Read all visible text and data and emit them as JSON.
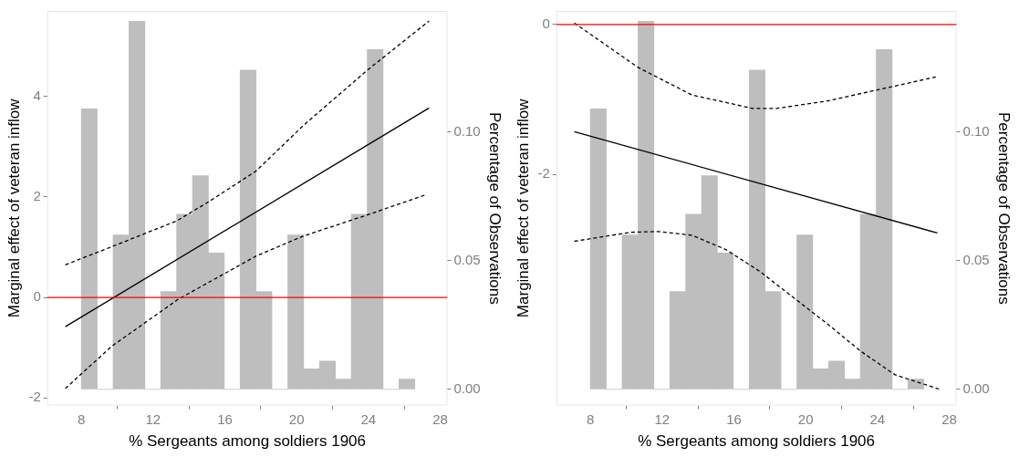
{
  "chart_data": [
    {
      "type": "line",
      "xlabel": "% Sergeants among soldiers 1906",
      "ylabel": "Marginal effect of veteran inflow",
      "y2label": "Percentage of Observations",
      "xlim": [
        6.1,
        28.4
      ],
      "xticks": [
        8,
        12,
        16,
        20,
        24,
        28
      ],
      "ylim": [
        -2.15,
        5.7
      ],
      "yticks": [
        -2,
        0,
        2,
        4
      ],
      "y2lim": [
        -0.0063,
        0.147
      ],
      "y2ticks": [
        {
          "value": 0,
          "label": "0.00"
        },
        {
          "value": 0.05,
          "label": "0.05"
        },
        {
          "value": 0.1,
          "label": "0.10"
        }
      ],
      "grid": false,
      "legend": false,
      "ref_lines": [
        {
          "axis": "y",
          "value": 0,
          "color": "#ff0000"
        }
      ],
      "series": [
        {
          "type": "histogram",
          "axis": "y2",
          "color": "#bebebe",
          "bins": [
            8.0,
            8.89,
            9.77,
            10.66,
            11.54,
            12.43,
            13.31,
            14.2,
            15.08,
            15.97,
            16.85,
            17.74,
            18.62,
            19.51,
            20.39,
            21.28,
            22.16,
            23.05,
            23.93,
            24.82,
            25.7,
            26.59
          ],
          "values": [
            0.109,
            0,
            0.06,
            0.143,
            0,
            0.038,
            0.068,
            0.083,
            0.053,
            0,
            0.124,
            0.038,
            0,
            0.06,
            0.008,
            0.011,
            0.004,
            0.068,
            0.132,
            0,
            0.004
          ]
        },
        {
          "type": "line",
          "color": "#000000",
          "line_style": "solid",
          "x": [
            7.11,
            27.38
          ],
          "values": [
            -0.58,
            3.77
          ]
        },
        {
          "type": "line",
          "color": "#000000",
          "line_style": "dashed",
          "x": [
            7.11,
            9.7,
            11.53,
            13.3,
            15.08,
            17.72,
            20.4,
            24.0,
            27.38
          ],
          "values": [
            0.65,
            1.01,
            1.27,
            1.52,
            1.9,
            2.51,
            3.43,
            4.54,
            5.5
          ]
        },
        {
          "type": "line",
          "color": "#000000",
          "line_style": "dashed",
          "x": [
            7.11,
            9.7,
            13.38,
            17.72,
            20.36,
            24.0,
            27.25
          ],
          "values": [
            -1.81,
            -0.97,
            -0.04,
            0.82,
            1.22,
            1.65,
            2.05
          ]
        }
      ]
    },
    {
      "type": "line",
      "xlabel": "% Sergeants among soldiers 1906",
      "ylabel": "Marginal effect of veteran inflow",
      "y2label": "Percentage of Observations",
      "xlim": [
        6.1,
        28.4
      ],
      "xticks": [
        8,
        12,
        16,
        20,
        24,
        28
      ],
      "ylim": [
        -5.08,
        0.18
      ],
      "yticks": [
        -2,
        0
      ],
      "y2lim": [
        -0.0063,
        0.147
      ],
      "y2ticks": [
        {
          "value": 0,
          "label": "0.00"
        },
        {
          "value": 0.05,
          "label": "0.05"
        },
        {
          "value": 0.1,
          "label": "0.10"
        }
      ],
      "grid": false,
      "legend": false,
      "ref_lines": [
        {
          "axis": "y",
          "value": 0,
          "color": "#ff0000"
        }
      ],
      "series": [
        {
          "type": "histogram",
          "axis": "y2",
          "color": "#bebebe",
          "bins": [
            8.0,
            8.89,
            9.77,
            10.66,
            11.54,
            12.43,
            13.31,
            14.2,
            15.08,
            15.97,
            16.85,
            17.74,
            18.62,
            19.51,
            20.39,
            21.28,
            22.16,
            23.05,
            23.93,
            24.82,
            25.7,
            26.59
          ],
          "values": [
            0.109,
            0,
            0.06,
            0.143,
            0,
            0.038,
            0.068,
            0.083,
            0.053,
            0,
            0.124,
            0.038,
            0,
            0.06,
            0.008,
            0.011,
            0.004,
            0.068,
            0.132,
            0,
            0.004
          ]
        },
        {
          "type": "line",
          "color": "#000000",
          "line_style": "solid",
          "x": [
            7.11,
            27.34
          ],
          "values": [
            -1.43,
            -2.78
          ]
        },
        {
          "type": "line",
          "color": "#000000",
          "line_style": "dashed",
          "x": [
            7.11,
            10.64,
            13.66,
            17.06,
            18.38,
            21.2,
            24.04,
            27.25
          ],
          "values": [
            0.02,
            -0.57,
            -0.94,
            -1.12,
            -1.12,
            -1.02,
            -0.87,
            -0.7
          ]
        },
        {
          "type": "line",
          "color": "#000000",
          "line_style": "dashed",
          "x": [
            7.11,
            10.26,
            11.77,
            13.66,
            15.55,
            17.43,
            19.32,
            21.2,
            23.09,
            24.98,
            27.43
          ],
          "values": [
            -2.89,
            -2.77,
            -2.76,
            -2.81,
            -3.0,
            -3.29,
            -3.64,
            -3.99,
            -4.36,
            -4.67,
            -4.86
          ]
        }
      ]
    }
  ]
}
